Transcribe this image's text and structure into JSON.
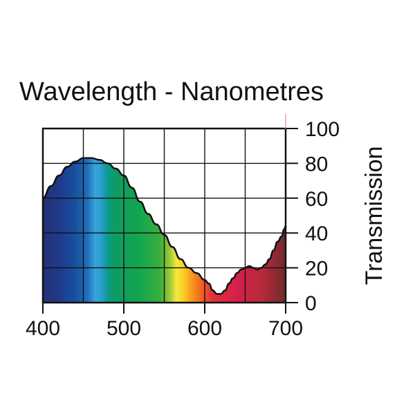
{
  "chart_data": {
    "type": "area",
    "title": "Wavelength - Nanometres",
    "xlabel": "Wavelength - Nanometres",
    "ylabel": "Transmission",
    "xlim": [
      400,
      700
    ],
    "ylim": [
      0,
      100
    ],
    "grid": true,
    "x_ticks": [
      400,
      500,
      600,
      700
    ],
    "x_tick_labels": [
      "400",
      "500",
      "600",
      "700"
    ],
    "y_ticks": [
      0,
      20,
      40,
      60,
      80,
      100
    ],
    "y_tick_labels": [
      "0",
      "20",
      "40",
      "60",
      "80",
      "100"
    ],
    "y_axis_side": "right",
    "series": [
      {
        "name": "Transmission",
        "x": [
          400,
          410,
          420,
          430,
          440,
          450,
          455,
          460,
          470,
          480,
          490,
          500,
          510,
          520,
          530,
          540,
          550,
          560,
          570,
          580,
          590,
          600,
          605,
          610,
          615,
          620,
          625,
          630,
          635,
          640,
          645,
          650,
          655,
          660,
          665,
          670,
          675,
          680,
          685,
          690,
          695,
          698,
          700
        ],
        "values": [
          60,
          67,
          73,
          78,
          81,
          83,
          83,
          83,
          82,
          80,
          77,
          73,
          66,
          58,
          51,
          45,
          39,
          32,
          25,
          20,
          17,
          13,
          11,
          7,
          5,
          5,
          7,
          11,
          14,
          17,
          19,
          20,
          21,
          20,
          19,
          20,
          22,
          25,
          30,
          35,
          38,
          42,
          44
        ]
      }
    ],
    "spectrum_colors": [
      {
        "wavelength": 400,
        "color": "#263070"
      },
      {
        "wavelength": 420,
        "color": "#1f3a8a"
      },
      {
        "wavelength": 440,
        "color": "#1a4fa0"
      },
      {
        "wavelength": 455,
        "color": "#1f6fb8"
      },
      {
        "wavelength": 465,
        "color": "#3aa3dc"
      },
      {
        "wavelength": 472,
        "color": "#2a9ed0"
      },
      {
        "wavelength": 480,
        "color": "#0a9a8a"
      },
      {
        "wavelength": 490,
        "color": "#109a62"
      },
      {
        "wavelength": 520,
        "color": "#14a64e"
      },
      {
        "wavelength": 545,
        "color": "#3aae3c"
      },
      {
        "wavelength": 558,
        "color": "#a8cc38"
      },
      {
        "wavelength": 565,
        "color": "#f2ea3a"
      },
      {
        "wavelength": 573,
        "color": "#fcd02a"
      },
      {
        "wavelength": 585,
        "color": "#f7941d"
      },
      {
        "wavelength": 598,
        "color": "#ee5a24"
      },
      {
        "wavelength": 610,
        "color": "#e2303c"
      },
      {
        "wavelength": 640,
        "color": "#d4204a"
      },
      {
        "wavelength": 670,
        "color": "#b82a3c"
      },
      {
        "wavelength": 700,
        "color": "#6e2a2a"
      }
    ],
    "colors": {
      "axis": "#111111",
      "grid": "#111111",
      "curve": "#111111",
      "marker": "#e8a0b8"
    }
  }
}
